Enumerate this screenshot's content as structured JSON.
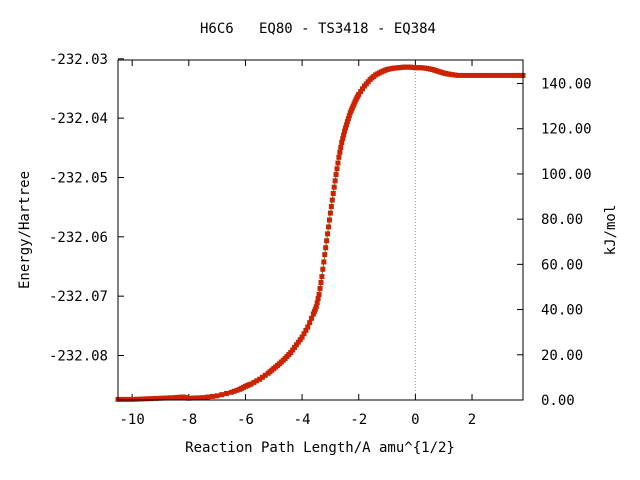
{
  "chart_data": {
    "type": "line",
    "title": "H6C6   EQ80 - TS3418 - EQ384",
    "xlabel": "Reaction Path Length/A amu^{1/2}",
    "ylabel": "Energy/Hartree",
    "y2label": "kJ/mol",
    "xlim": [
      -10.5,
      3.8
    ],
    "ylim": [
      -232.0875,
      -232.0302
    ],
    "y2lim": [
      0,
      150.4
    ],
    "grid": false,
    "legend": "none",
    "x_ticks": [
      -10,
      -8,
      -6,
      -4,
      -2,
      0,
      2
    ],
    "x_tick_labels": [
      "-10",
      "-8",
      "-6",
      "-4",
      "-2",
      "0",
      "2"
    ],
    "y_ticks": [
      -232.03,
      -232.04,
      -232.05,
      -232.06,
      -232.07,
      -232.08
    ],
    "y_tick_labels": [
      "-232.03",
      "-232.04",
      "-232.05",
      "-232.06",
      "-232.07",
      "-232.08"
    ],
    "y2_ticks": [
      0,
      20,
      40,
      60,
      80,
      100,
      120,
      140
    ],
    "y2_tick_labels": [
      "0.00",
      "20.00",
      "40.00",
      "60.00",
      "80.00",
      "100.00",
      "120.00",
      "140.00"
    ],
    "ts_marker_x": 0,
    "series": [
      {
        "line_color": "#00aa00",
        "marker_color": "#cc2200",
        "x": [
          -10.5,
          -10.0,
          -9.5,
          -9.0,
          -8.5,
          -8.2,
          -8.0,
          -7.5,
          -7.0,
          -6.5,
          -6.2,
          -6.0,
          -5.8,
          -5.5,
          -5.2,
          -5.0,
          -4.8,
          -4.6,
          -4.4,
          -4.2,
          -4.0,
          -3.8,
          -3.6,
          -3.5,
          -3.4,
          -3.3,
          -3.2,
          -3.1,
          -3.0,
          -2.9,
          -2.8,
          -2.7,
          -2.6,
          -2.5,
          -2.4,
          -2.3,
          -2.2,
          -2.1,
          -2.0,
          -1.8,
          -1.6,
          -1.4,
          -1.2,
          -1.0,
          -0.8,
          -0.6,
          -0.4,
          -0.2,
          0.0,
          0.2,
          0.4,
          0.6,
          0.8,
          1.0,
          1.2,
          1.5,
          2.0,
          2.5,
          3.0,
          3.5,
          3.8
        ],
        "y": [
          -232.0874,
          -232.0874,
          -232.0873,
          -232.0872,
          -232.0871,
          -232.087,
          -232.0872,
          -232.0871,
          -232.0868,
          -232.0862,
          -232.0857,
          -232.0852,
          -232.0848,
          -232.084,
          -232.083,
          -232.0822,
          -232.0814,
          -232.0805,
          -232.0795,
          -232.0782,
          -232.0769,
          -232.0752,
          -232.073,
          -232.0718,
          -232.0697,
          -232.0667,
          -232.063,
          -232.0595,
          -232.056,
          -232.0527,
          -232.0495,
          -232.0466,
          -232.0441,
          -232.0422,
          -232.0406,
          -232.0391,
          -232.038,
          -232.0369,
          -232.036,
          -232.0346,
          -232.0335,
          -232.0327,
          -232.0322,
          -232.0318,
          -232.0316,
          -232.0315,
          -232.0314,
          -232.0314,
          -232.0315,
          -232.0315,
          -232.0316,
          -232.0318,
          -232.0321,
          -232.0324,
          -232.0326,
          -232.0328,
          -232.0328,
          -232.0328,
          -232.0328,
          -232.0328,
          -232.0328
        ]
      }
    ]
  }
}
